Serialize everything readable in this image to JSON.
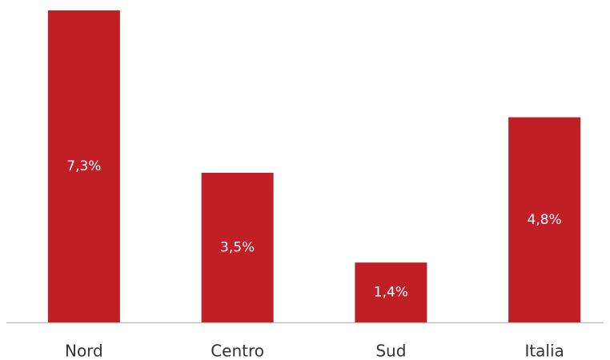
{
  "chart_data": {
    "type": "bar",
    "categories": [
      "Nord",
      "Centro",
      "Sud",
      "Italia"
    ],
    "values": [
      7.3,
      3.5,
      1.4,
      4.8
    ],
    "value_labels": [
      "7,3%",
      "3,5%",
      "1,4%",
      "4,8%"
    ],
    "color": "#c01f26"
  }
}
